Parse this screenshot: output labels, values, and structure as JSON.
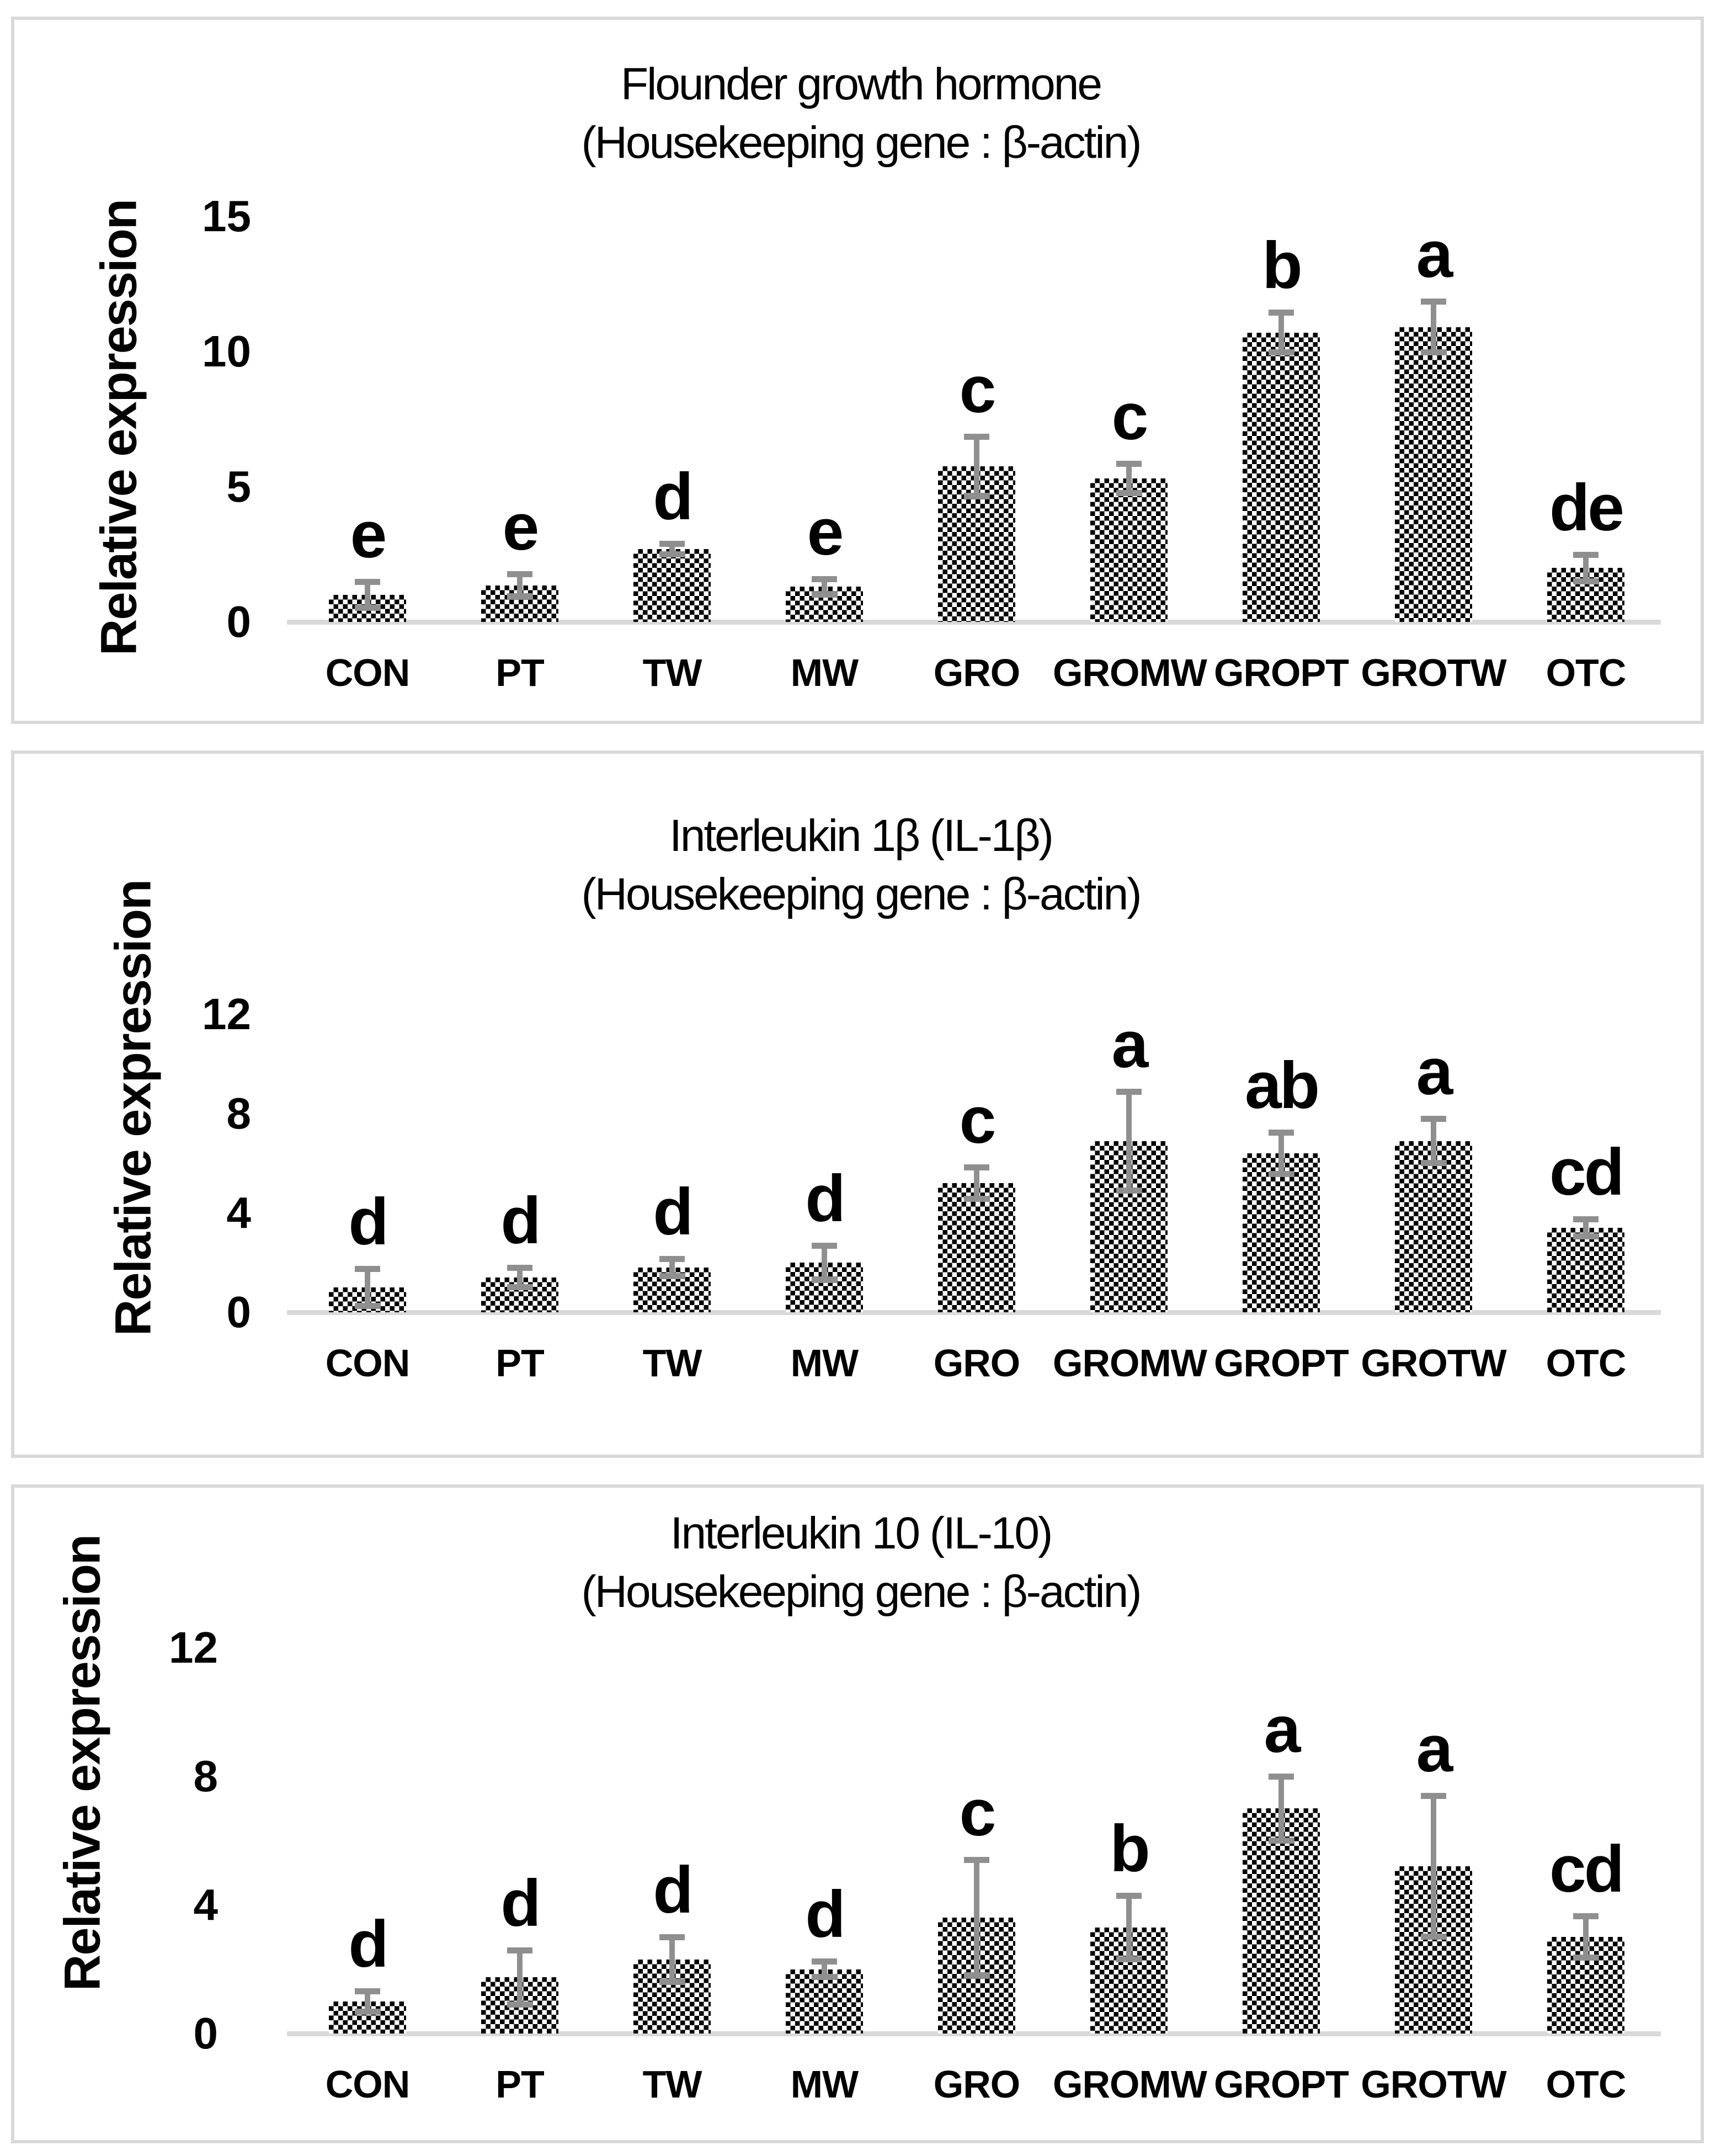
{
  "colors": {
    "bar_fill": "#000000",
    "bar_background": "#ffffff",
    "error_bar": "#8f8f8f",
    "axis_line": "#d9d9d9",
    "panel_border": "#d9d9d9",
    "text": "#000000"
  },
  "categories": [
    "CON",
    "PT",
    "TW",
    "MW",
    "GRO",
    "GROMW",
    "GROPT",
    "GROTW",
    "OTC"
  ],
  "chart_data": [
    {
      "type": "bar",
      "title": "Flounder growth hormone",
      "subtitle": "(Housekeeping gene : β-actin)",
      "ylabel": "Relative expression",
      "xlabel": "",
      "categories": [
        "CON",
        "PT",
        "TW",
        "MW",
        "GRO",
        "GROMW",
        "GROPT",
        "GROTW",
        "OTC"
      ],
      "values": [
        1.0,
        1.35,
        2.7,
        1.3,
        5.75,
        5.3,
        10.7,
        10.9,
        2.0
      ],
      "errors": [
        0.48,
        0.42,
        0.2,
        0.3,
        1.1,
        0.55,
        0.75,
        0.95,
        0.5
      ],
      "sig_letters": [
        "e",
        "e",
        "d",
        "e",
        "c",
        "c",
        "b",
        "a",
        "de"
      ],
      "yticks": [
        0,
        5,
        10,
        15
      ],
      "ylim": [
        0,
        15
      ],
      "grid": "off",
      "legend": "none"
    },
    {
      "type": "bar",
      "title": "Interleukin 1β (IL-1β)",
      "subtitle": "(Housekeeping gene : β-actin)",
      "ylabel": "Relative expression",
      "xlabel": "",
      "categories": [
        "CON",
        "PT",
        "TW",
        "MW",
        "GRO",
        "GROMW",
        "GROPT",
        "GROTW",
        "OTC"
      ],
      "values": [
        1.0,
        1.4,
        1.8,
        2.0,
        5.2,
        6.9,
        6.4,
        6.9,
        3.4
      ],
      "errors": [
        0.75,
        0.4,
        0.35,
        0.7,
        0.65,
        2.0,
        0.85,
        0.9,
        0.35
      ],
      "sig_letters": [
        "d",
        "d",
        "d",
        "d",
        "c",
        "a",
        "ab",
        "a",
        "cd"
      ],
      "yticks": [
        0,
        4,
        8,
        12
      ],
      "ylim": [
        0,
        12
      ],
      "grid": "off",
      "legend": "none"
    },
    {
      "type": "bar",
      "title": "Interleukin 10 (IL-10)",
      "subtitle": "(Housekeeping gene : β-actin)",
      "ylabel": "Relative expression",
      "xlabel": "",
      "categories": [
        "CON",
        "PT",
        "TW",
        "MW",
        "GRO",
        "GROMW",
        "GROPT",
        "GROTW",
        "OTC"
      ],
      "values": [
        1.0,
        1.75,
        2.3,
        2.0,
        3.6,
        3.3,
        7.0,
        5.2,
        3.0
      ],
      "errors": [
        0.33,
        0.85,
        0.7,
        0.25,
        1.8,
        1.0,
        1.0,
        2.2,
        0.65
      ],
      "sig_letters": [
        "d",
        "d",
        "d",
        "d",
        "c",
        "b",
        "a",
        "a",
        "cd"
      ],
      "yticks": [
        0,
        4,
        8,
        12
      ],
      "ylim": [
        0,
        12
      ],
      "grid": "off",
      "legend": "none"
    }
  ]
}
